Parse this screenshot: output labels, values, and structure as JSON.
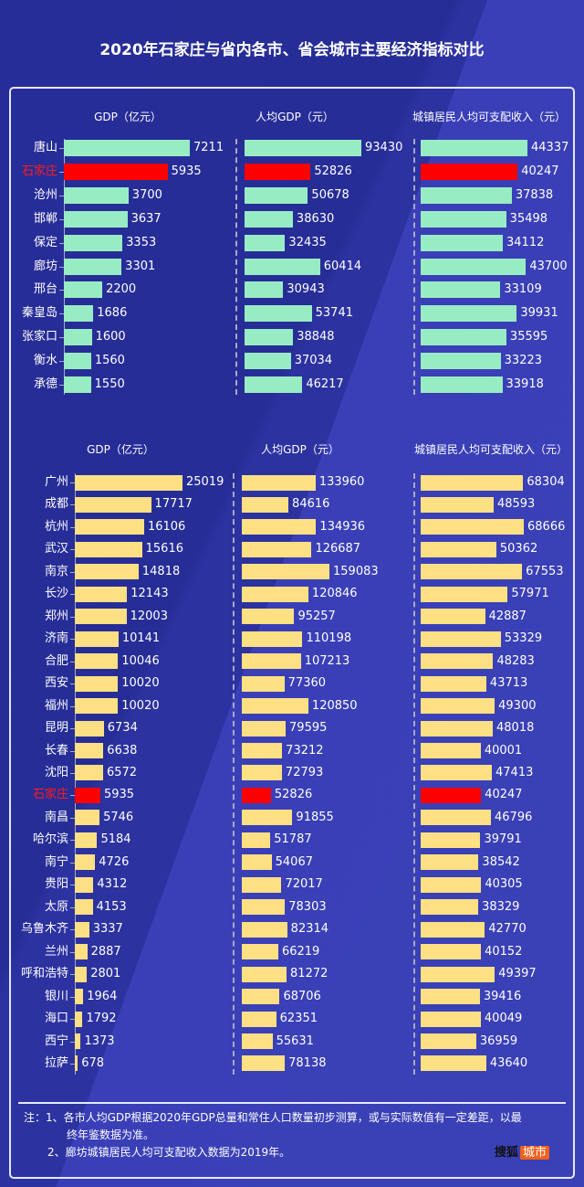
{
  "title": "2020年石家庄与省内各市、省会城市主要经济指标对比",
  "colors": {
    "province": "#98ecc3",
    "capital": "#fde083",
    "highlight": "#ff0000",
    "background": "#2a2f9c"
  },
  "chart_data": [
    {
      "type": "bar",
      "orientation": "horizontal",
      "group": "省内各市",
      "categories": [
        "唐山",
        "石家庄",
        "沧州",
        "邯郸",
        "保定",
        "廊坊",
        "邢台",
        "秦皇岛",
        "张家口",
        "衡水",
        "承德"
      ],
      "highlight": "石家庄",
      "series": [
        {
          "name": "GDP（亿元）",
          "values": [
            7211,
            5935,
            3700,
            3637,
            3353,
            3301,
            2200,
            1686,
            1600,
            1560,
            1550
          ]
        },
        {
          "name": "人均GDP（元）",
          "values": [
            93430,
            52826,
            50678,
            38630,
            32435,
            60414,
            30943,
            53741,
            38848,
            37034,
            46217
          ]
        },
        {
          "name": "城镇居民人均可支配收入（元）",
          "values": [
            44337,
            40247,
            37838,
            35498,
            34112,
            43700,
            33109,
            39931,
            35595,
            33223,
            33918
          ]
        }
      ]
    },
    {
      "type": "bar",
      "orientation": "horizontal",
      "group": "省会城市",
      "categories": [
        "广州",
        "成都",
        "杭州",
        "武汉",
        "南京",
        "长沙",
        "郑州",
        "济南",
        "合肥",
        "西安",
        "福州",
        "昆明",
        "长春",
        "沈阳",
        "石家庄",
        "南昌",
        "哈尔滨",
        "南宁",
        "贵阳",
        "太原",
        "乌鲁木齐",
        "兰州",
        "呼和浩特",
        "银川",
        "海口",
        "西宁",
        "拉萨"
      ],
      "highlight": "石家庄",
      "series": [
        {
          "name": "GDP（亿元）",
          "values": [
            25019,
            17717,
            16106,
            15616,
            14818,
            12143,
            12003,
            10141,
            10046,
            10020,
            10020,
            6734,
            6638,
            6572,
            5935,
            5746,
            5184,
            4726,
            4312,
            4153,
            3337,
            2887,
            2801,
            1964,
            1792,
            1373,
            678
          ]
        },
        {
          "name": "人均GDP（元）",
          "values": [
            133960,
            84616,
            134936,
            126687,
            159083,
            120846,
            95257,
            110198,
            107213,
            77360,
            120850,
            79595,
            73212,
            72793,
            52826,
            91855,
            51787,
            54067,
            72017,
            78303,
            82314,
            66219,
            81272,
            68706,
            62351,
            55631,
            78138
          ]
        },
        {
          "name": "城镇居民人均可支配收入（元）",
          "values": [
            68304,
            48593,
            68666,
            50362,
            67553,
            57971,
            42887,
            53329,
            48283,
            43713,
            49300,
            48018,
            40001,
            47413,
            40247,
            46796,
            39791,
            38542,
            40305,
            38329,
            42770,
            40152,
            49397,
            39416,
            40049,
            36959,
            43640
          ]
        }
      ]
    }
  ],
  "notes": {
    "line1": "注：1、各市人均GDP根据2020年GDP总量和常住人口数量初步测算，或与实际数值有一定差距，以最",
    "line1b": "终年鉴数据为准。",
    "line2": "2、廊坊城镇居民人均可支配收入数据为2019年。"
  },
  "logo": {
    "text": "搜狐",
    "badge": "城市"
  }
}
